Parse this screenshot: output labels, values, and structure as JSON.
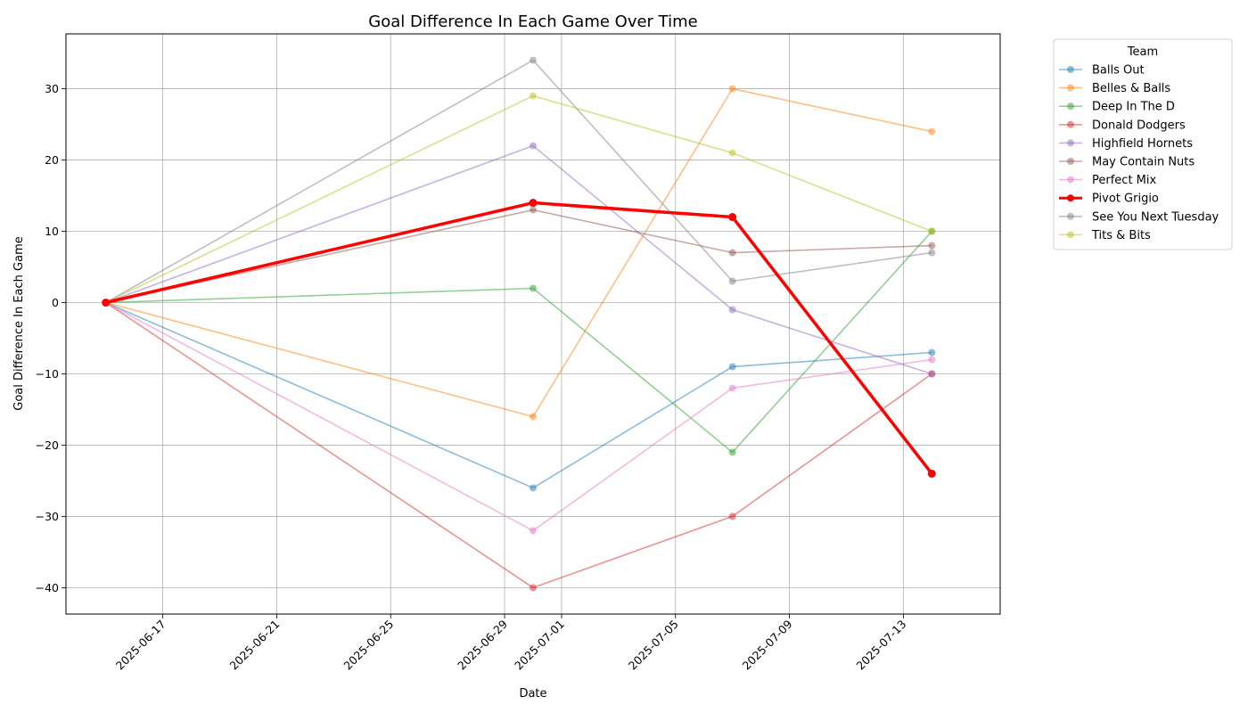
{
  "chart_data": {
    "type": "line",
    "title": "Goal Difference In Each Game Over Time",
    "xlabel": "Date",
    "ylabel": "Goal Difference In Each Game",
    "x": [
      "2025-06-15",
      "2025-06-30",
      "2025-07-07",
      "2025-07-14"
    ],
    "xlim": [
      "2025-06-13.6",
      "2025-07-16.4"
    ],
    "xticks": [
      "2025-06-17",
      "2025-06-21",
      "2025-06-25",
      "2025-06-29",
      "2025-07-01",
      "2025-07-05",
      "2025-07-09",
      "2025-07-13"
    ],
    "ylim": [
      -43.7,
      37.7
    ],
    "yticks": [
      -40,
      -30,
      -20,
      -10,
      0,
      10,
      20,
      30
    ],
    "grid": true,
    "legend_title": "Team",
    "legend_position": "outside-top-right",
    "series": [
      {
        "name": "Balls Out",
        "color": "#1f77b4",
        "values": [
          0,
          -26,
          -9,
          -7
        ],
        "highlight": false
      },
      {
        "name": "Belles & Balls",
        "color": "#ff7f0e",
        "values": [
          0,
          -16,
          30,
          24
        ],
        "highlight": false
      },
      {
        "name": "Deep In The D",
        "color": "#2ca02c",
        "values": [
          0,
          2,
          -21,
          10
        ],
        "highlight": false
      },
      {
        "name": "Donald Dodgers",
        "color": "#d62728",
        "values": [
          0,
          -40,
          -30,
          -10
        ],
        "highlight": false
      },
      {
        "name": "Highfield Hornets",
        "color": "#9467bd",
        "values": [
          0,
          22,
          -1,
          -10
        ],
        "highlight": false
      },
      {
        "name": "May Contain Nuts",
        "color": "#8c564b",
        "values": [
          0,
          13,
          7,
          8
        ],
        "highlight": false
      },
      {
        "name": "Perfect Mix",
        "color": "#e377c2",
        "values": [
          0,
          -32,
          -12,
          -8
        ],
        "highlight": false
      },
      {
        "name": "Pivot Grigio",
        "color": "#ff0000",
        "values": [
          0,
          14,
          12,
          -24
        ],
        "highlight": true
      },
      {
        "name": "See You Next Tuesday",
        "color": "#7f7f7f",
        "values": [
          0,
          34,
          3,
          7
        ],
        "highlight": false
      },
      {
        "name": "Tits & Bits",
        "color": "#bcbd22",
        "values": [
          0,
          29,
          21,
          10
        ],
        "highlight": false
      }
    ]
  }
}
